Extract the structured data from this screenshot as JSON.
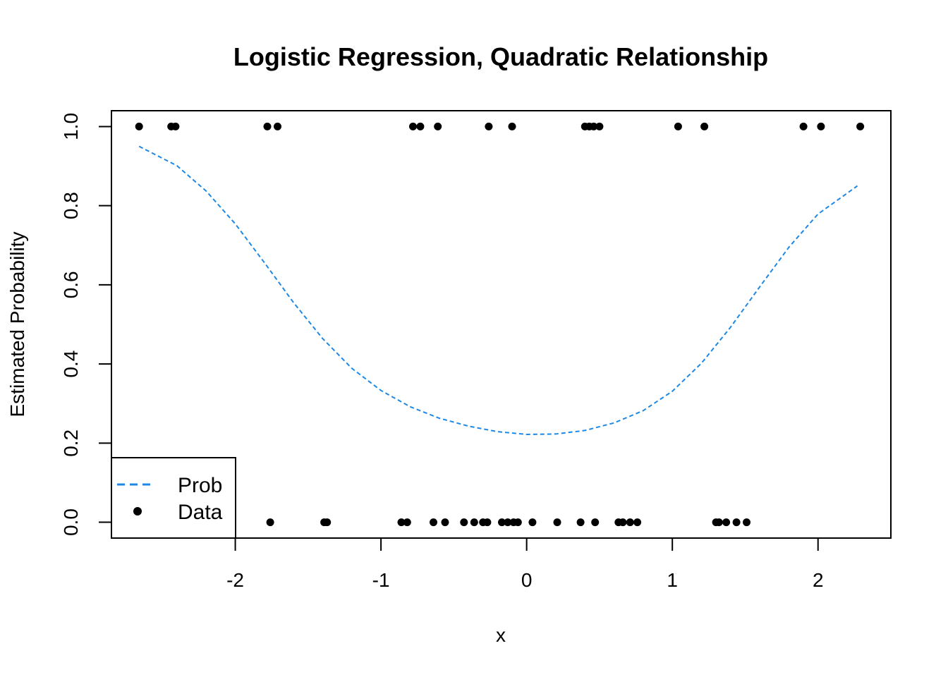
{
  "chart_data": {
    "type": "scatter",
    "title": "Logistic Regression, Quadratic Relationship",
    "xlabel": "x",
    "ylabel": "Estimated Probability",
    "xlim": [
      -2.85,
      2.5
    ],
    "ylim": [
      -0.04,
      1.04
    ],
    "x_ticks": [
      -2,
      -1,
      0,
      1,
      2
    ],
    "x_tick_labels": [
      "-2",
      "-1",
      "0",
      "1",
      "2"
    ],
    "y_ticks": [
      0.0,
      0.2,
      0.4,
      0.6,
      0.8,
      1.0
    ],
    "y_tick_labels": [
      "0.0",
      "0.2",
      "0.4",
      "0.6",
      "0.8",
      "1.0"
    ],
    "grid": false,
    "legend_position": "bottom-left",
    "series": [
      {
        "name": "Prob",
        "kind": "line",
        "style": "dashed",
        "color": "#1E88E5",
        "x": [
          -2.66,
          -2.4,
          -2.2,
          -2.0,
          -1.8,
          -1.6,
          -1.4,
          -1.2,
          -1.0,
          -0.8,
          -0.6,
          -0.4,
          -0.2,
          0.0,
          0.2,
          0.4,
          0.6,
          0.8,
          1.0,
          1.2,
          1.4,
          1.6,
          1.8,
          2.0,
          2.27
        ],
        "y": [
          0.95,
          0.901,
          0.837,
          0.754,
          0.656,
          0.555,
          0.464,
          0.389,
          0.333,
          0.292,
          0.263,
          0.243,
          0.229,
          0.222,
          0.223,
          0.232,
          0.251,
          0.282,
          0.331,
          0.402,
          0.493,
          0.595,
          0.695,
          0.779,
          0.85
        ]
      },
      {
        "name": "Data",
        "kind": "points",
        "color": "#000000",
        "x": [
          -2.66,
          -2.44,
          -2.41,
          -1.78,
          -1.71,
          -0.78,
          -0.73,
          -0.61,
          -0.26,
          -0.1,
          0.4,
          0.43,
          0.46,
          0.5,
          1.04,
          1.22,
          1.9,
          2.02,
          2.29,
          -1.76,
          -1.39,
          -1.37,
          -0.86,
          -0.82,
          -0.64,
          -0.56,
          -0.43,
          -0.36,
          -0.3,
          -0.27,
          -0.17,
          -0.13,
          -0.09,
          -0.06,
          0.04,
          0.21,
          0.37,
          0.47,
          0.63,
          0.66,
          0.71,
          0.76,
          1.3,
          1.32,
          1.37,
          1.44,
          1.51
        ],
        "y": [
          1,
          1,
          1,
          1,
          1,
          1,
          1,
          1,
          1,
          1,
          1,
          1,
          1,
          1,
          1,
          1,
          1,
          1,
          1,
          0,
          0,
          0,
          0,
          0,
          0,
          0,
          0,
          0,
          0,
          0,
          0,
          0,
          0,
          0,
          0,
          0,
          0,
          0,
          0,
          0,
          0,
          0,
          0,
          0,
          0,
          0,
          0
        ]
      }
    ]
  }
}
